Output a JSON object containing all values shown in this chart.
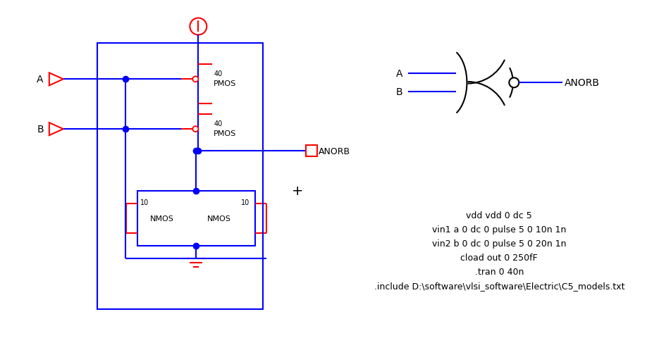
{
  "blue": "#0000FF",
  "red": "#FF0000",
  "black": "#000000",
  "wire_lw": 1.5,
  "netlist_fontsize": 9,
  "netlist_lines": [
    "vdd vdd 0 dc 5",
    "vin1 a 0 dc 0 pulse 5 0 10n 1n",
    "vin2 b 0 dc 0 pulse 5 0 20n 1n",
    "cload out 0 250fF",
    ".tran 0 40n",
    ".include D:\\software\\vlsi_software\\Electric\\C5_models.txt"
  ]
}
